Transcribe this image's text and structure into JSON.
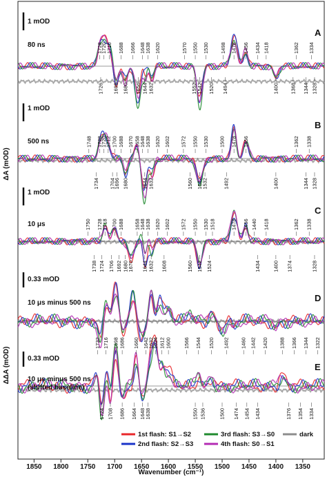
{
  "chart_data": {
    "type": "line",
    "x_axis": {
      "label": "Wavenumber (cm⁻¹)",
      "range": [
        1880,
        1310
      ],
      "ticks": [
        1850,
        1800,
        1750,
        1700,
        1650,
        1600,
        1550,
        1500,
        1450,
        1400,
        1350
      ]
    },
    "y_axis_labels": {
      "top": "ΔA (mOD)",
      "bottom": "ΔΔA (mOD)"
    },
    "colors": {
      "flash1": "#e8262a",
      "flash2": "#1a33c8",
      "flash3": "#1f8a2e",
      "flash4": "#b32bb3",
      "dark": "#8c8c8c"
    },
    "legend": {
      "entries": [
        {
          "key": "flash1",
          "text": "1st flash: S1→S2"
        },
        {
          "key": "flash2",
          "text": "2nd flash: S2→S3"
        },
        {
          "key": "flash3",
          "text": "3rd flash: S3→S0"
        },
        {
          "key": "flash4",
          "text": "4th flash: S0→S1"
        },
        {
          "key": "dark",
          "text": "dark"
        }
      ]
    },
    "panels": [
      {
        "letter": "A",
        "time": "80 ns",
        "scale": "1 mOD",
        "scale_mOD": 1,
        "up_peaks": [
          1728,
          1720,
          1710,
          1688,
          1666,
          1648,
          1638,
          1620,
          1570,
          1550,
          1530,
          1498,
          1478,
          1456,
          1434,
          1418,
          1362,
          1334
        ],
        "down_peaks": [
          1726,
          1698,
          1680,
          1656,
          1644,
          1632,
          1552,
          1542,
          1520,
          1494,
          1400,
          1368,
          1344,
          1328
        ],
        "strong": [
          [
            1728,
            0.9
          ],
          [
            1720,
            1.3
          ],
          [
            1710,
            0.9
          ],
          [
            1698,
            -1.0
          ],
          [
            1680,
            -0.8
          ],
          [
            1656,
            -2.0
          ],
          [
            1648,
            1.0
          ],
          [
            1644,
            -1.5
          ],
          [
            1638,
            0.8
          ],
          [
            1632,
            -1.0
          ],
          [
            1542,
            -2.0
          ],
          [
            1478,
            1.6
          ],
          [
            1456,
            0.8
          ],
          [
            1400,
            -0.6
          ]
        ]
      },
      {
        "letter": "B",
        "time": "500 ns",
        "scale": "1 mOD",
        "scale_mOD": 1,
        "up_peaks": [
          1748,
          1728,
          1720,
          1712,
          1700,
          1688,
          1670,
          1658,
          1648,
          1638,
          1620,
          1602,
          1572,
          1550,
          1530,
          1500,
          1478,
          1456,
          1362,
          1338
        ],
        "down_peaks": [
          1734,
          1704,
          1696,
          1680,
          1644,
          1632,
          1560,
          1542,
          1532,
          1492,
          1400,
          1344,
          1328
        ],
        "strong": [
          [
            1728,
            0.7
          ],
          [
            1720,
            1.0
          ],
          [
            1712,
            0.6
          ],
          [
            1680,
            -0.8
          ],
          [
            1658,
            0.7
          ],
          [
            1644,
            -2.2
          ],
          [
            1638,
            0.8
          ],
          [
            1632,
            -1.0
          ],
          [
            1542,
            -1.4
          ],
          [
            1478,
            1.7
          ],
          [
            1456,
            0.9
          ]
        ]
      },
      {
        "letter": "C",
        "time": "10 μs",
        "scale": "1 mOD",
        "scale_mOD": 1,
        "up_peaks": [
          1750,
          1728,
          1718,
          1700,
          1688,
          1658,
          1648,
          1638,
          1620,
          1602,
          1572,
          1550,
          1530,
          1518,
          1478,
          1456,
          1440,
          1418,
          1362,
          1338
        ],
        "down_peaks": [
          1738,
          1724,
          1706,
          1692,
          1680,
          1670,
          1644,
          1632,
          1608,
          1560,
          1542,
          1524,
          1434,
          1400,
          1374,
          1328
        ],
        "strong": [
          [
            1718,
            0.9
          ],
          [
            1700,
            0.7
          ],
          [
            1670,
            -0.9
          ],
          [
            1648,
            1.0
          ],
          [
            1644,
            -2.2
          ],
          [
            1638,
            0.9
          ],
          [
            1632,
            -0.9
          ],
          [
            1542,
            -1.3
          ],
          [
            1478,
            1.6
          ],
          [
            1456,
            0.9
          ]
        ]
      },
      {
        "letter": "D",
        "time": "10 μs minus 500 ns",
        "scale": "0.33 mOD",
        "scale_mOD": 0.33,
        "up_peaks": [],
        "down_peaks": [],
        "strong": [
          [
            1726,
            -0.8
          ],
          [
            1716,
            0.6
          ],
          [
            1698,
            1.1
          ],
          [
            1686,
            -0.5
          ],
          [
            1666,
            0.9
          ],
          [
            1650,
            -0.5
          ],
          [
            1632,
            1.0
          ],
          [
            1616,
            0.8
          ],
          [
            1600,
            0.4
          ],
          [
            1560,
            0.3
          ],
          [
            1520,
            0.3
          ],
          [
            1500,
            -0.3
          ],
          [
            1478,
            -0.2
          ],
          [
            1400,
            -0.2
          ]
        ]
      },
      {
        "letter": "E",
        "time": "10 μs minus 500 ns",
        "subtitle": "(shifted baseline)",
        "scale": "0.33 mOD",
        "scale_mOD": 0.33,
        "up_peaks": [
          1732,
          1716,
          1698,
          1686,
          1660,
          1642,
          1632,
          1624,
          1612,
          1600,
          1566,
          1544,
          1520,
          1492,
          1460,
          1442,
          1420,
          1388,
          1366,
          1344,
          1322
        ],
        "down_peaks": [
          1724,
          1708,
          1686,
          1664,
          1648,
          1638,
          1550,
          1536,
          1500,
          1474,
          1454,
          1434,
          1376,
          1354,
          1334
        ],
        "strong": [
          [
            1732,
            0.6
          ],
          [
            1724,
            -1.2
          ],
          [
            1716,
            0.7
          ],
          [
            1708,
            -0.8
          ],
          [
            1698,
            1.4
          ],
          [
            1686,
            -0.5
          ],
          [
            1660,
            1.0
          ],
          [
            1648,
            -0.5
          ],
          [
            1632,
            1.1
          ],
          [
            1624,
            1.2
          ],
          [
            1612,
            0.7
          ],
          [
            1600,
            0.5
          ],
          [
            1544,
            0.4
          ],
          [
            1520,
            0.3
          ],
          [
            1388,
            0.4
          ]
        ]
      }
    ]
  }
}
